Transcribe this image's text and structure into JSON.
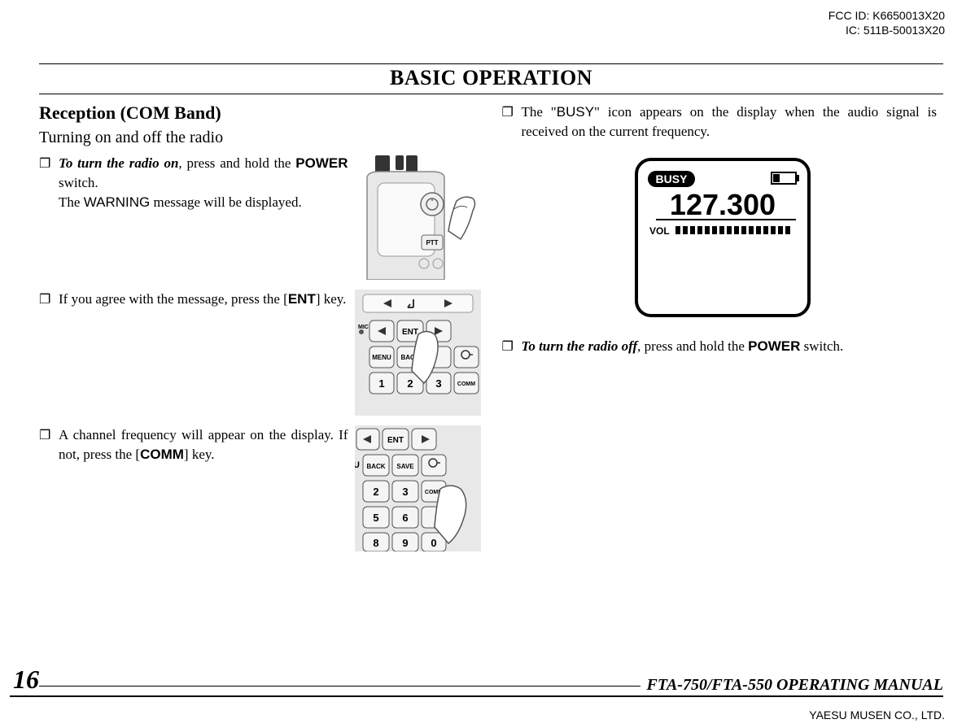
{
  "header": {
    "fcc_id": "FCC ID: K6650013X20",
    "ic": "IC: 511B-50013X20"
  },
  "section_title": "BASIC OPERATION",
  "left_column": {
    "heading": "Reception (COM Band)",
    "subheading": "Turning on and off the radio",
    "bullets": [
      {
        "html": "<span class='bi'>To turn the radio on</span>, press and hold the <span class='b'>POWER</span> switch.<br>The <span class='sf'>WARNING</span> message will be displayed."
      },
      {
        "html": "If you agree with the message, press the [<span class='b'>ENT</span>] key."
      },
      {
        "html": "A channel frequency will appear on the display. If not, press the [<span class='b'>COMM</span>] key."
      }
    ]
  },
  "right_column": {
    "bullets_top": [
      {
        "html": "The \"<span class='sf'>BUSY</span>\" icon appears on the display when the audio signal is received on the current frequency."
      }
    ],
    "display": {
      "busy_label": "BUSY",
      "frequency": "127.300",
      "vol_label": "VOL",
      "bg_color": "#ffffff",
      "text_color": "#000000",
      "border_color": "#000000"
    },
    "bullets_bottom": [
      {
        "html": "<span class='bi'>To turn the radio off</span>, press and hold the <span class='b'>POWER</span> switch."
      }
    ]
  },
  "footer": {
    "page_number": "16",
    "manual_title": "FTA-750/FTA-550 OPERATING MANUAL",
    "company": "YAESU MUSEN CO., LTD."
  },
  "svg": {
    "radio_top": {
      "ptt_label": "PTT"
    },
    "keypad1": {
      "btn_ent": "ENT",
      "btn_menu": "MENU",
      "btn_back": "BACK",
      "btn_1": "1",
      "btn_2": "2",
      "btn_3": "3",
      "btn_comm": "COMM",
      "mic_label": "MIC"
    },
    "keypad2": {
      "btn_ent": "ENT",
      "btn_back": "BACK",
      "btn_save": "SAVE",
      "btn_2": "2",
      "btn_3": "3",
      "btn_5": "5",
      "btn_6": "6",
      "btn_8": "8",
      "btn_9": "9",
      "btn_0": "0",
      "btn_comm": "COMM",
      "u_label": "U"
    }
  }
}
